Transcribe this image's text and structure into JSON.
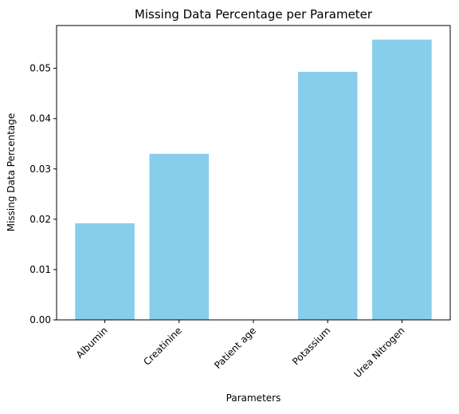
{
  "chart_data": {
    "type": "bar",
    "title": "Missing Data Percentage per Parameter",
    "xlabel": "Parameters",
    "ylabel": "Missing Data Percentage",
    "categories": [
      "Albumin",
      "Creatinine",
      "Patient age",
      "Potassium",
      "Urea Nitrogen"
    ],
    "values": [
      0.0192,
      0.033,
      0.0,
      0.0493,
      0.0557
    ],
    "ylim": [
      0,
      0.0585
    ],
    "yticks": [
      0.0,
      0.01,
      0.02,
      0.03,
      0.04,
      0.05
    ],
    "ytick_labels": [
      "0.00",
      "0.01",
      "0.02",
      "0.03",
      "0.04",
      "0.05"
    ],
    "bar_color": "#87CEEB",
    "grid": false,
    "legend": "none"
  }
}
